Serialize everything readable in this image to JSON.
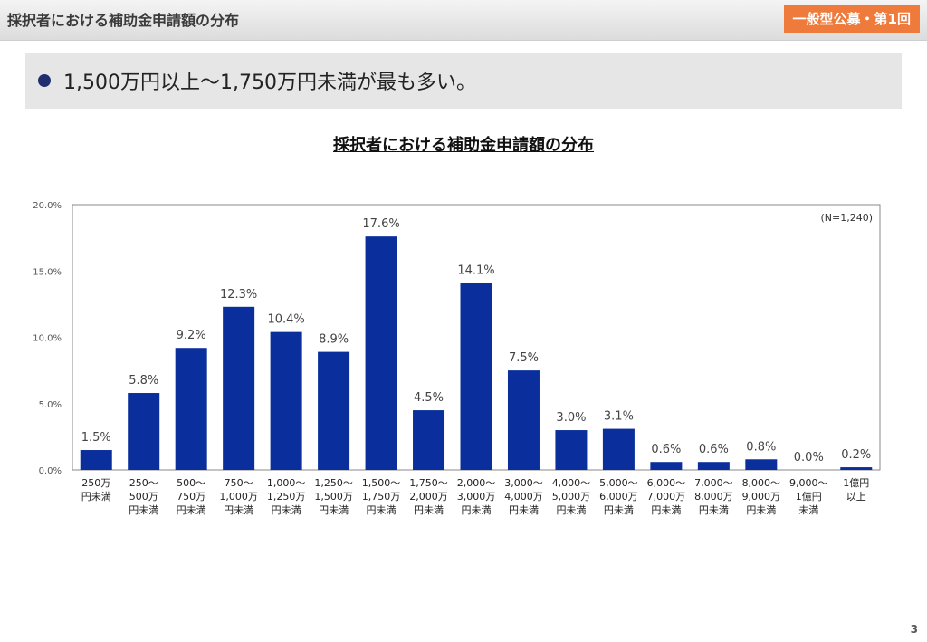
{
  "header": {
    "title": "採択者における補助金申請額の分布",
    "badge": "一般型公募・第1回"
  },
  "headline": "1,500万円以上～1,750万円未満が最も多い。",
  "page_number": "3",
  "colors": {
    "bar": "#0a2f9c",
    "badge": "#ee7a3b",
    "bullet": "#1f2f6e"
  },
  "chart_data": {
    "type": "bar",
    "title": "採択者における補助金申請額の分布",
    "note": "(N=1,240)",
    "xlabel": "",
    "ylabel": "",
    "ylim": [
      0,
      20
    ],
    "yticks": [
      "0.0%",
      "5.0%",
      "10.0%",
      "15.0%",
      "20.0%"
    ],
    "grid": false,
    "categories": [
      [
        "250万",
        "円未満"
      ],
      [
        "250～",
        "500万",
        "円未満"
      ],
      [
        "500～",
        "750万",
        "円未満"
      ],
      [
        "750～",
        "1,000万",
        "円未満"
      ],
      [
        "1,000～",
        "1,250万",
        "円未満"
      ],
      [
        "1,250～",
        "1,500万",
        "円未満"
      ],
      [
        "1,500～",
        "1,750万",
        "円未満"
      ],
      [
        "1,750～",
        "2,000万",
        "円未満"
      ],
      [
        "2,000～",
        "3,000万",
        "円未満"
      ],
      [
        "3,000～",
        "4,000万",
        "円未満"
      ],
      [
        "4,000～",
        "5,000万",
        "円未満"
      ],
      [
        "5,000～",
        "6,000万",
        "円未満"
      ],
      [
        "6,000～",
        "7,000万",
        "円未満"
      ],
      [
        "7,000～",
        "8,000万",
        "円未満"
      ],
      [
        "8,000～",
        "9,000万",
        "円未満"
      ],
      [
        "9,000～",
        "1億円",
        "未満"
      ],
      [
        "1億円",
        "以上"
      ]
    ],
    "values": [
      1.5,
      5.8,
      9.2,
      12.3,
      10.4,
      8.9,
      17.6,
      4.5,
      14.1,
      7.5,
      3.0,
      3.1,
      0.6,
      0.6,
      0.8,
      0.0,
      0.2
    ],
    "value_labels": [
      "1.5%",
      "5.8%",
      "9.2%",
      "12.3%",
      "10.4%",
      "8.9%",
      "17.6%",
      "4.5%",
      "14.1%",
      "7.5%",
      "3.0%",
      "3.1%",
      "0.6%",
      "0.6%",
      "0.8%",
      "0.0%",
      "0.2%"
    ]
  }
}
